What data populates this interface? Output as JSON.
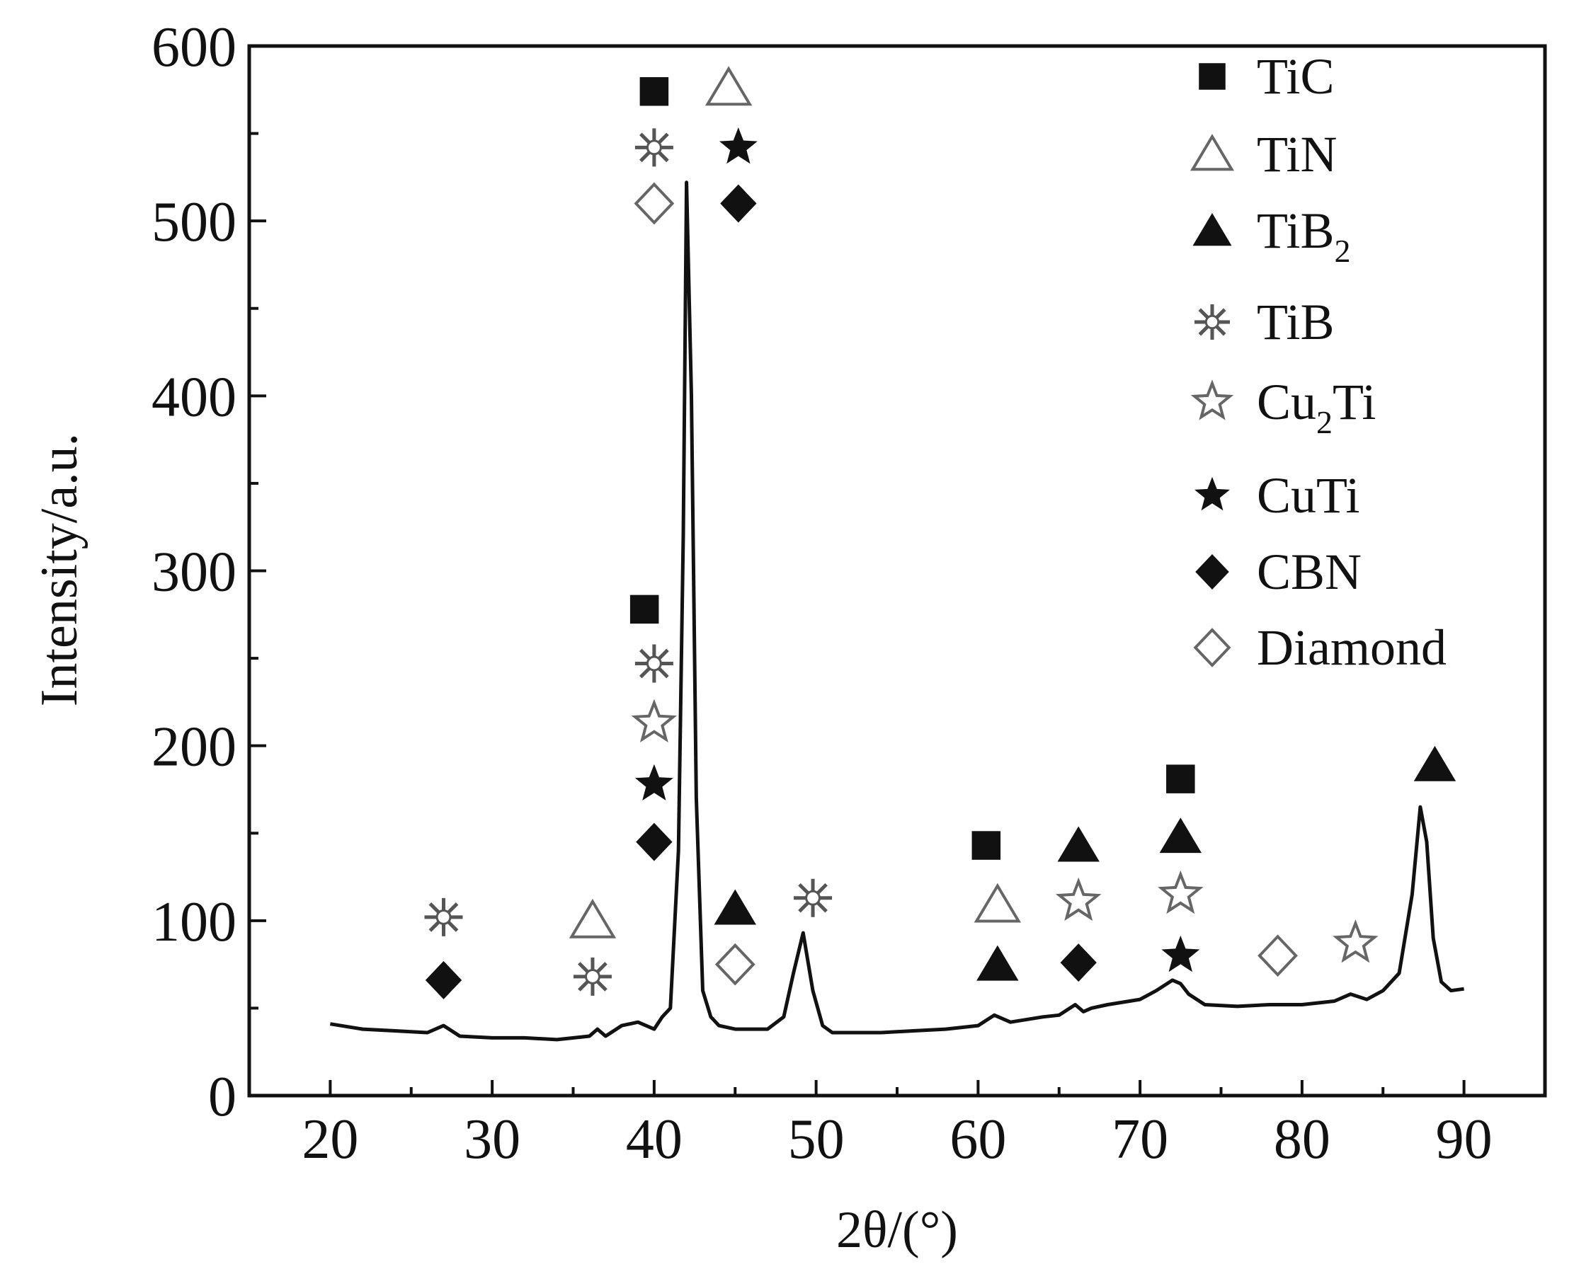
{
  "chart_data": {
    "type": "line",
    "title": "",
    "xlabel": "2θ/(°)",
    "ylabel": "Intensity/a.u.",
    "xlim": [
      15,
      95
    ],
    "ylim": [
      0,
      600
    ],
    "xticks": [
      20,
      30,
      40,
      50,
      60,
      70,
      80,
      90
    ],
    "yticks": [
      0,
      100,
      200,
      300,
      400,
      500,
      600
    ],
    "x_tick_labels": [
      "20",
      "30",
      "40",
      "50",
      "60",
      "70",
      "80",
      "90"
    ],
    "y_tick_labels": [
      "0",
      "100",
      "200",
      "300",
      "400",
      "500",
      "600"
    ],
    "grid": false,
    "legend_position": "top-right",
    "legend": [
      {
        "key": "TiC",
        "base": "TiC",
        "sub": "",
        "after": "",
        "symbol": "square-filled"
      },
      {
        "key": "TiN",
        "base": "TiN",
        "sub": "",
        "after": "",
        "symbol": "triangle-open"
      },
      {
        "key": "TiB2",
        "base": "TiB",
        "sub": "2",
        "after": "",
        "symbol": "triangle-filled"
      },
      {
        "key": "TiB",
        "base": "TiB",
        "sub": "",
        "after": "",
        "symbol": "asterisk"
      },
      {
        "key": "Cu2Ti",
        "base": "Cu",
        "sub": "2",
        "after": "Ti",
        "symbol": "star-open"
      },
      {
        "key": "CuTi",
        "base": "CuTi",
        "sub": "",
        "after": "",
        "symbol": "star-filled"
      },
      {
        "key": "CBN",
        "base": "CBN",
        "sub": "",
        "after": "",
        "symbol": "diamond-filled"
      },
      {
        "key": "Diamond",
        "base": "Diamond",
        "sub": "",
        "after": "",
        "symbol": "diamond-open"
      }
    ],
    "series": [
      {
        "x": [
          20,
          22,
          24,
          26,
          27,
          28,
          30,
          32,
          34,
          36,
          36.5,
          37,
          38,
          39,
          40,
          40.5,
          41,
          41.5,
          41.8,
          42,
          42.3,
          42.6,
          43,
          43.5,
          44,
          45,
          46,
          47,
          48,
          48.6,
          49.2,
          49.8,
          50.4,
          51,
          52,
          54,
          56,
          58,
          60,
          61,
          62,
          64,
          65,
          66,
          66.5,
          67,
          68,
          70,
          71,
          72,
          72.5,
          73,
          74,
          76,
          78,
          80,
          82,
          83,
          84,
          85,
          86,
          86.8,
          87.3,
          87.7,
          88.1,
          88.6,
          89.2,
          90
        ],
        "y": [
          41,
          38,
          37,
          36,
          40,
          34,
          33,
          33,
          32,
          34,
          38,
          34,
          40,
          42,
          38,
          45,
          50,
          140,
          320,
          522,
          400,
          170,
          60,
          45,
          40,
          38,
          38,
          38,
          45,
          70,
          93,
          60,
          40,
          36,
          36,
          36,
          37,
          38,
          40,
          46,
          42,
          45,
          46,
          52,
          48,
          50,
          52,
          55,
          60,
          66,
          64,
          58,
          52,
          51,
          52,
          52,
          54,
          58,
          55,
          60,
          70,
          115,
          165,
          145,
          90,
          65,
          60,
          61
        ]
      }
    ],
    "annotations": [
      {
        "phase": "TiB",
        "x": 27,
        "y": 102
      },
      {
        "phase": "CBN",
        "x": 27,
        "y": 66
      },
      {
        "phase": "TiN",
        "x": 36.2,
        "y": 100
      },
      {
        "phase": "TiB",
        "x": 36.2,
        "y": 68
      },
      {
        "phase": "TiC",
        "x": 40,
        "y": 574
      },
      {
        "phase": "TiB",
        "x": 40,
        "y": 542
      },
      {
        "phase": "Diamond",
        "x": 40,
        "y": 510
      },
      {
        "phase": "TiN",
        "x": 44.6,
        "y": 576
      },
      {
        "phase": "CuTi",
        "x": 45.2,
        "y": 542
      },
      {
        "phase": "CBN",
        "x": 45.2,
        "y": 510
      },
      {
        "phase": "TiC",
        "x": 39.4,
        "y": 278
      },
      {
        "phase": "TiB",
        "x": 40,
        "y": 247
      },
      {
        "phase": "Cu2Ti",
        "x": 40,
        "y": 213
      },
      {
        "phase": "CuTi",
        "x": 40,
        "y": 178
      },
      {
        "phase": "CBN",
        "x": 40,
        "y": 145
      },
      {
        "phase": "TiB2",
        "x": 45,
        "y": 107
      },
      {
        "phase": "Diamond",
        "x": 45,
        "y": 75
      },
      {
        "phase": "TiB",
        "x": 49.8,
        "y": 113
      },
      {
        "phase": "TiC",
        "x": 60.5,
        "y": 143
      },
      {
        "phase": "TiN",
        "x": 61.2,
        "y": 109
      },
      {
        "phase": "TiB2",
        "x": 61.2,
        "y": 75
      },
      {
        "phase": "TiB2",
        "x": 66.2,
        "y": 143
      },
      {
        "phase": "Cu2Ti",
        "x": 66.2,
        "y": 111
      },
      {
        "phase": "CBN",
        "x": 66.2,
        "y": 76
      },
      {
        "phase": "TiC",
        "x": 72.5,
        "y": 181
      },
      {
        "phase": "TiB2",
        "x": 72.5,
        "y": 148
      },
      {
        "phase": "Cu2Ti",
        "x": 72.5,
        "y": 115
      },
      {
        "phase": "CuTi",
        "x": 72.5,
        "y": 80
      },
      {
        "phase": "Diamond",
        "x": 78.5,
        "y": 80
      },
      {
        "phase": "Cu2Ti",
        "x": 83.3,
        "y": 87
      },
      {
        "phase": "TiB2",
        "x": 88.2,
        "y": 189
      }
    ]
  }
}
